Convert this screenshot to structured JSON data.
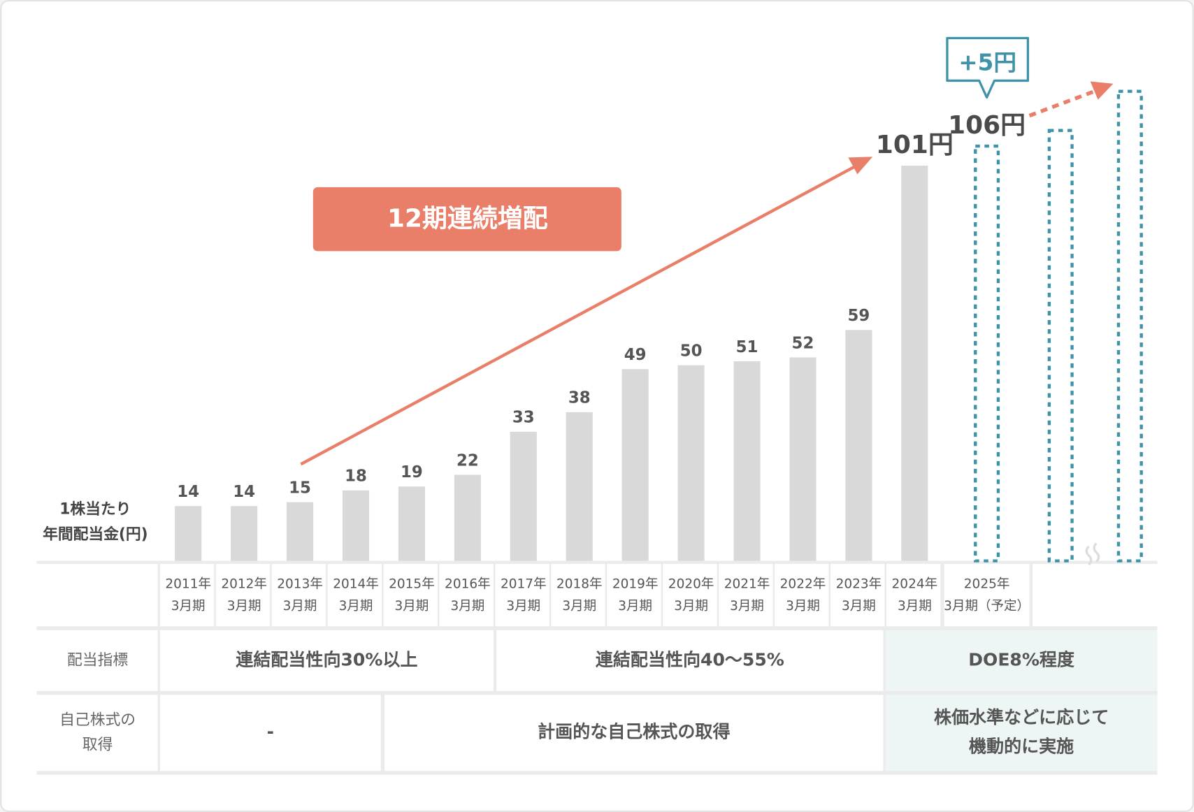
{
  "chart_data": {
    "type": "bar",
    "y_label": [
      "1株当たり",
      "年間配当金(円)"
    ],
    "categories": [
      [
        "2011年",
        "3月期"
      ],
      [
        "2012年",
        "3月期"
      ],
      [
        "2013年",
        "3月期"
      ],
      [
        "2014年",
        "3月期"
      ],
      [
        "2015年",
        "3月期"
      ],
      [
        "2016年",
        "3月期"
      ],
      [
        "2017年",
        "3月期"
      ],
      [
        "2018年",
        "3月期"
      ],
      [
        "2019年",
        "3月期"
      ],
      [
        "2020年",
        "3月期"
      ],
      [
        "2021年",
        "3月期"
      ],
      [
        "2022年",
        "3月期"
      ],
      [
        "2023年",
        "3月期"
      ],
      [
        "2024年",
        "3月期"
      ],
      [
        "2025年",
        "3月期（予定）"
      ],
      null
    ],
    "series": [
      {
        "color": "#d9d9d9",
        "values": [
          14,
          14,
          15,
          18,
          19,
          22,
          33,
          38,
          49,
          50,
          51,
          52,
          59,
          101,
          null,
          null
        ],
        "value_labels": [
          "14",
          "14",
          "15",
          "18",
          "19",
          "22",
          "33",
          "38",
          "49",
          "50",
          "51",
          "52",
          "59",
          "101円",
          null,
          null
        ]
      },
      {
        "color": "#3f93a8",
        "values": [
          null,
          null,
          null,
          null,
          null,
          null,
          null,
          null,
          null,
          null,
          null,
          null,
          null,
          null,
          106,
          null
        ],
        "value_labels": [
          null,
          null,
          null,
          null,
          null,
          null,
          null,
          null,
          null,
          null,
          null,
          null,
          null,
          null,
          "106円",
          null
        ]
      }
    ],
    "future_values": [
      110,
      120
    ],
    "ylim": [
      0,
      120
    ],
    "annotations": {
      "streak": "12期連続増配",
      "increase": "+5円"
    }
  },
  "table": {
    "rows": [
      {
        "label": [
          "配当指標"
        ],
        "cells": [
          [
            "連結配当性向30%以上"
          ],
          [
            "連結配当性向40〜55%"
          ],
          [
            "DOE8%程度"
          ]
        ]
      },
      {
        "label": [
          "自己株式の",
          "取得"
        ],
        "cells": [
          [
            "-"
          ],
          [
            "計画的な自己株式の取得"
          ],
          [
            "株価水準などに応じて",
            "機動的に実施"
          ]
        ]
      }
    ]
  }
}
